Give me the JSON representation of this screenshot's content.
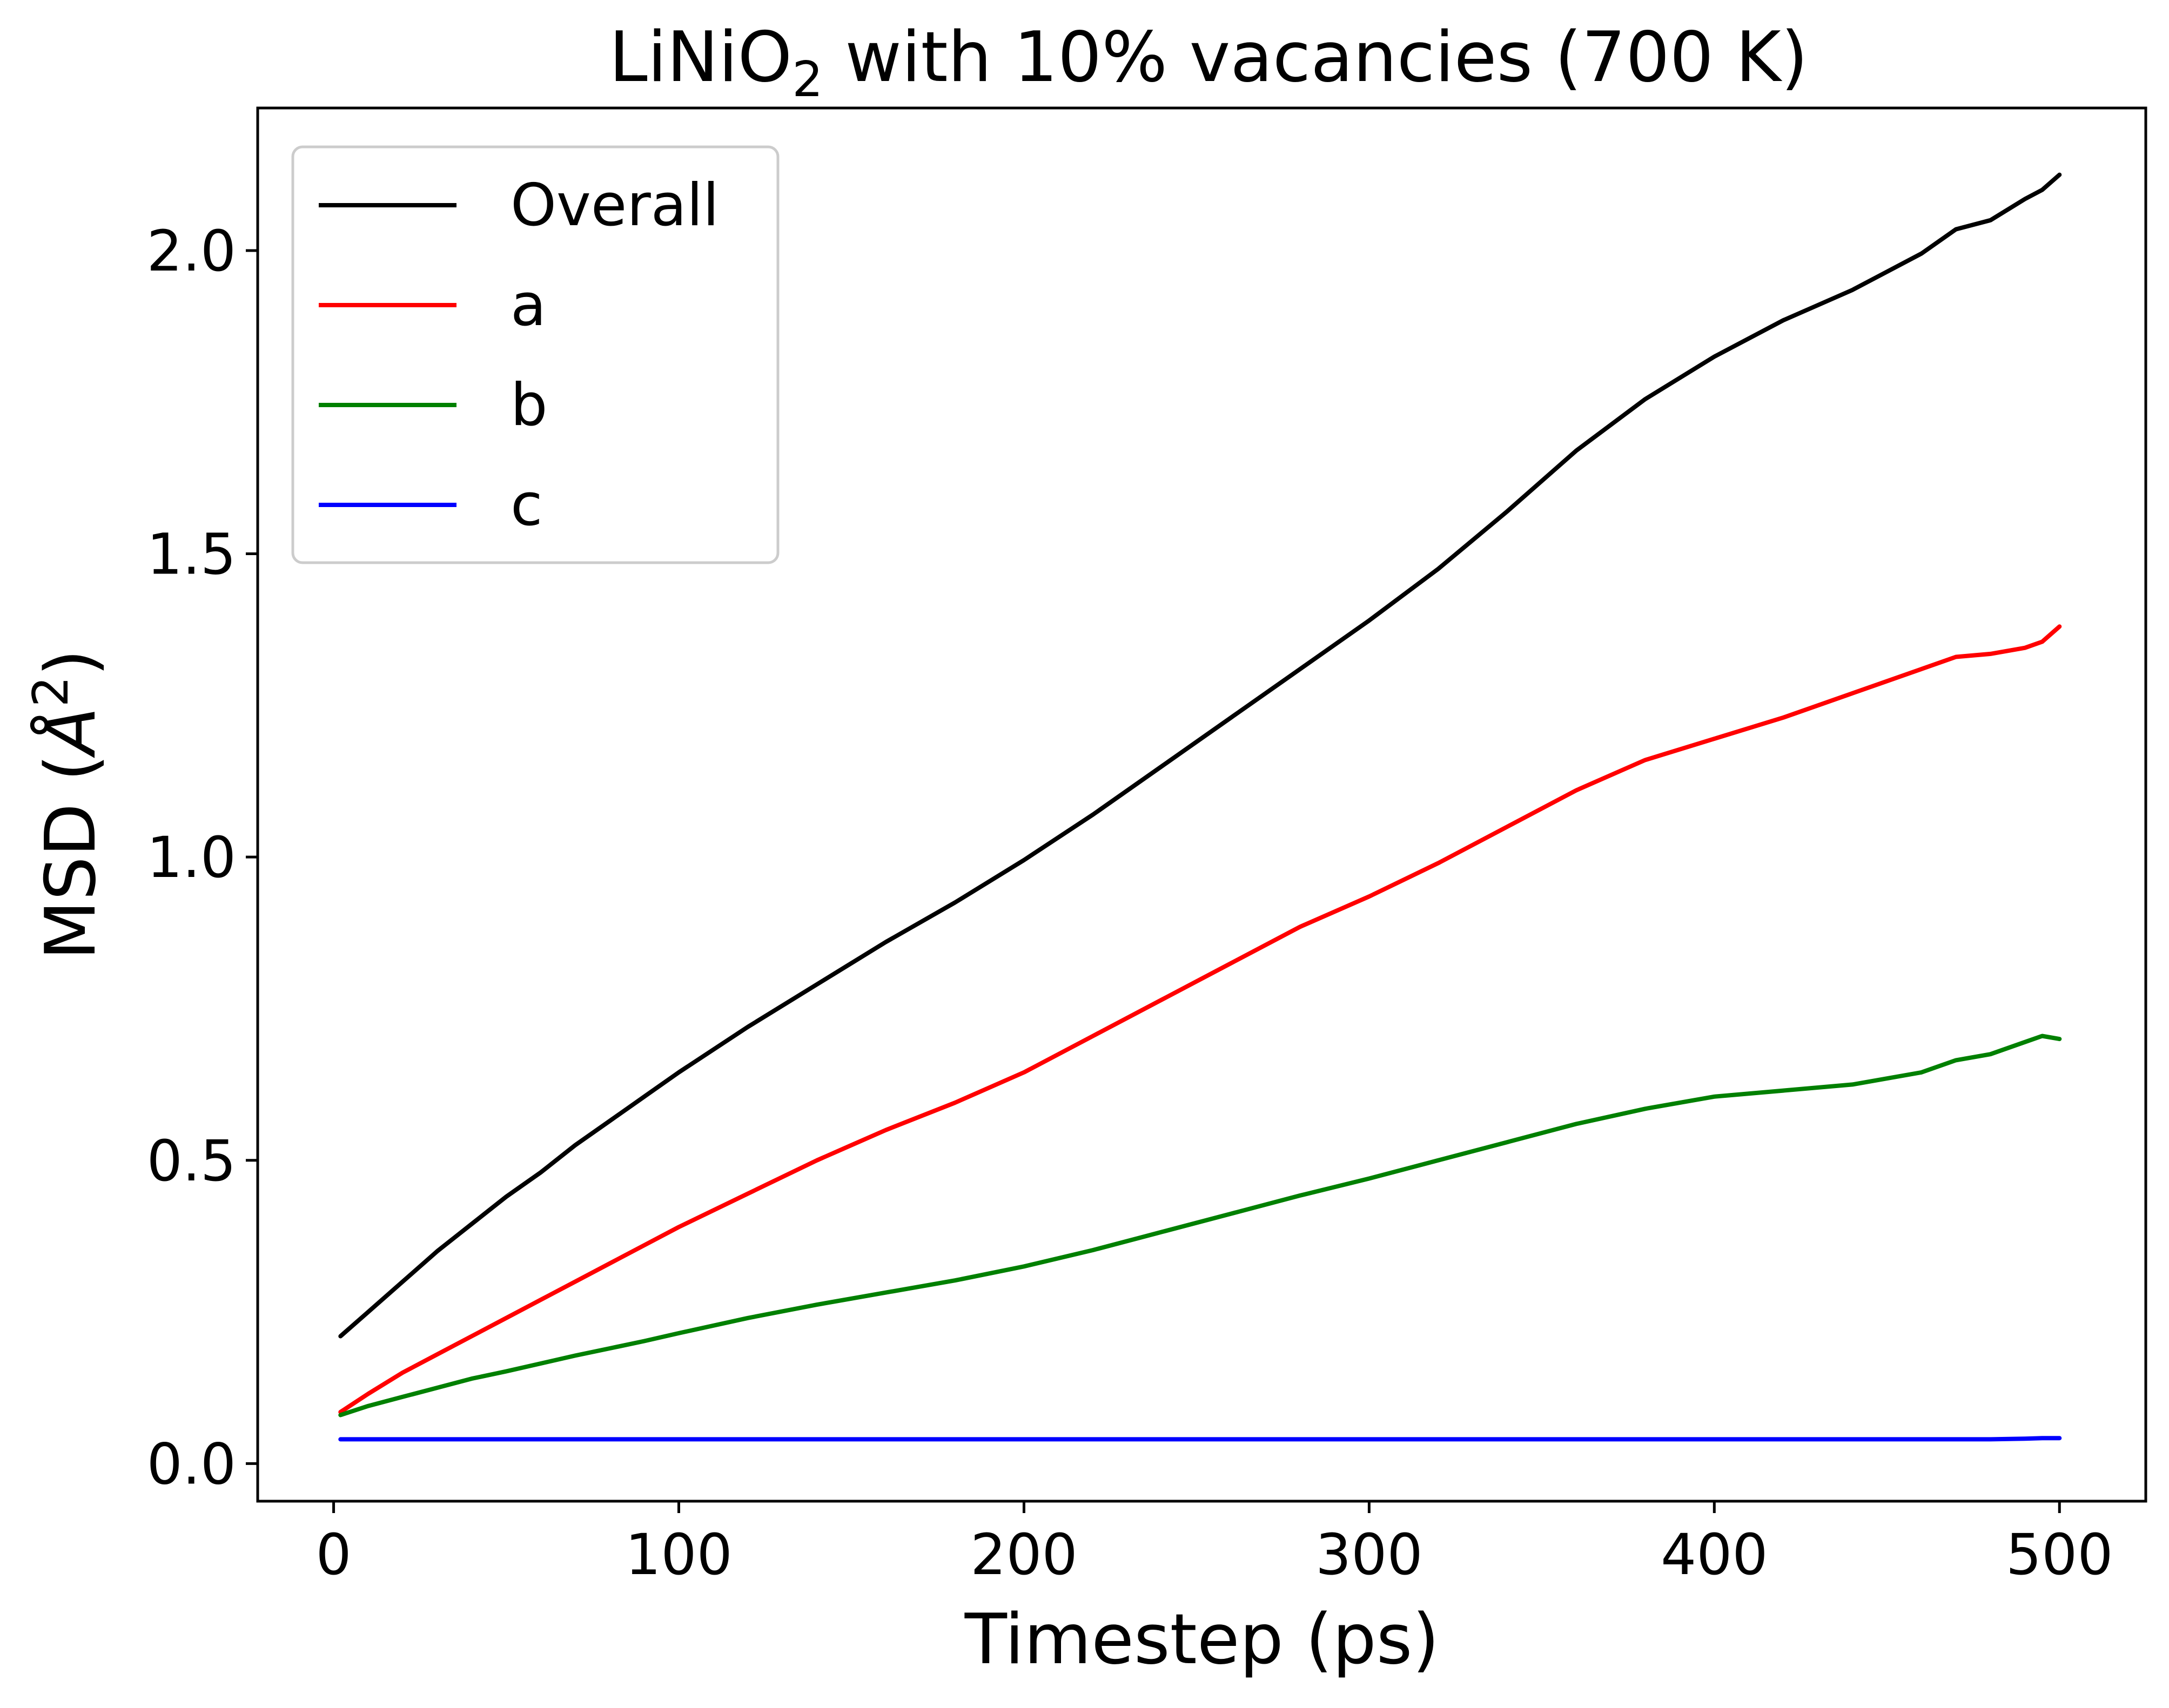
{
  "chart_data": {
    "type": "line",
    "title": {
      "prefix": "LiNiO",
      "subscript": "2",
      "suffix": " with 10% vacancies (700 K)"
    },
    "xlabel": "Timestep (ps)",
    "ylabel": {
      "prefix": "MSD (",
      "unit": "Å",
      "superscript": "2",
      "suffix": ")"
    },
    "xlim": [
      -22,
      525
    ],
    "ylim": [
      -0.062,
      2.235
    ],
    "xticks": [
      {
        "value": 0,
        "label": "0"
      },
      {
        "value": 100,
        "label": "100"
      },
      {
        "value": 200,
        "label": "200"
      },
      {
        "value": 300,
        "label": "300"
      },
      {
        "value": 400,
        "label": "400"
      },
      {
        "value": 500,
        "label": "500"
      }
    ],
    "yticks": [
      {
        "value": 0.0,
        "label": "0.0"
      },
      {
        "value": 0.5,
        "label": "0.5"
      },
      {
        "value": 1.0,
        "label": "1.0"
      },
      {
        "value": 1.5,
        "label": "1.5"
      },
      {
        "value": 2.0,
        "label": "2.0"
      }
    ],
    "grid": false,
    "legend_position": "top-left",
    "x": [
      2,
      10,
      20,
      30,
      40,
      50,
      60,
      70,
      80,
      90,
      100,
      120,
      140,
      150,
      160,
      180,
      200,
      220,
      240,
      260,
      280,
      300,
      320,
      340,
      360,
      380,
      400,
      420,
      440,
      460,
      470,
      480,
      490,
      495,
      500
    ],
    "series": [
      {
        "name": "Overall",
        "color": "#000000",
        "values": [
          0.21,
          0.25,
          0.3,
          0.35,
          0.395,
          0.44,
          0.48,
          0.525,
          0.565,
          0.605,
          0.645,
          0.72,
          0.79,
          0.825,
          0.86,
          0.925,
          0.995,
          1.07,
          1.15,
          1.23,
          1.31,
          1.39,
          1.475,
          1.57,
          1.67,
          1.755,
          1.825,
          1.885,
          1.935,
          1.995,
          2.035,
          2.05,
          2.085,
          2.1,
          2.125
        ]
      },
      {
        "name": "a",
        "color": "#ff0000",
        "values": [
          0.085,
          0.115,
          0.15,
          0.18,
          0.21,
          0.24,
          0.27,
          0.3,
          0.33,
          0.36,
          0.39,
          0.445,
          0.5,
          0.525,
          0.55,
          0.595,
          0.645,
          0.705,
          0.765,
          0.825,
          0.885,
          0.935,
          0.99,
          1.05,
          1.11,
          1.16,
          1.195,
          1.23,
          1.27,
          1.31,
          1.33,
          1.335,
          1.345,
          1.355,
          1.38
        ]
      },
      {
        "name": "b",
        "color": "#008000",
        "values": [
          0.08,
          0.095,
          0.11,
          0.125,
          0.14,
          0.152,
          0.165,
          0.178,
          0.19,
          0.202,
          0.215,
          0.24,
          0.262,
          0.272,
          0.282,
          0.302,
          0.325,
          0.352,
          0.382,
          0.412,
          0.442,
          0.47,
          0.5,
          0.53,
          0.56,
          0.585,
          0.605,
          0.615,
          0.625,
          0.645,
          0.665,
          0.675,
          0.695,
          0.705,
          0.7
        ]
      },
      {
        "name": "c",
        "color": "#0000ff",
        "values": [
          0.04,
          0.04,
          0.04,
          0.04,
          0.04,
          0.04,
          0.04,
          0.04,
          0.04,
          0.04,
          0.04,
          0.04,
          0.04,
          0.04,
          0.04,
          0.04,
          0.04,
          0.04,
          0.04,
          0.04,
          0.04,
          0.04,
          0.04,
          0.04,
          0.04,
          0.04,
          0.04,
          0.04,
          0.04,
          0.04,
          0.04,
          0.04,
          0.041,
          0.042,
          0.042
        ]
      }
    ]
  }
}
